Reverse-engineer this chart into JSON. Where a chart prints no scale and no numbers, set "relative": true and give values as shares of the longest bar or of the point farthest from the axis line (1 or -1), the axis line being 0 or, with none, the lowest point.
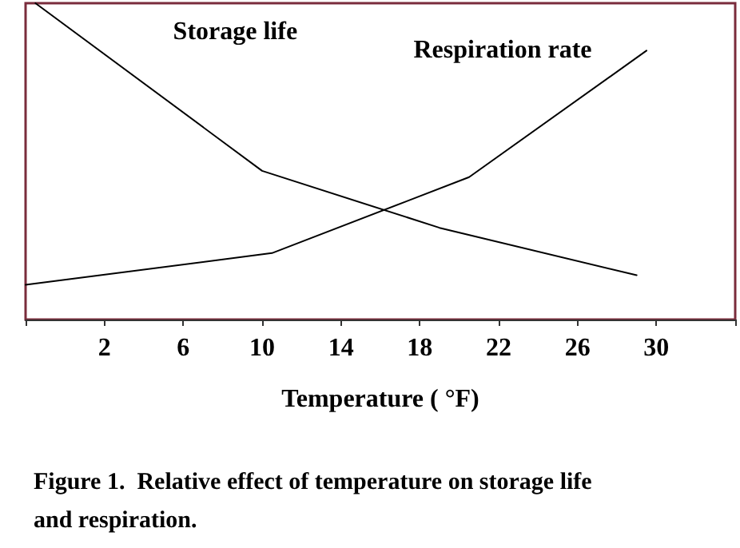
{
  "chart_data": {
    "type": "line",
    "title": "Figure 1.  Relative effect of temperature on storage life and respiration.",
    "xlabel": "Temperature ( °F)",
    "relative": true,
    "xlim": [
      -2,
      34
    ],
    "xticks": [
      {
        "value": -2,
        "label": null
      },
      2,
      6,
      10,
      14,
      18,
      22,
      26,
      30,
      {
        "value": 34,
        "label": null
      }
    ],
    "series": [
      {
        "name": "Storage life",
        "color": "#000000",
        "x": [
          -1.5,
          10,
          19,
          29
        ],
        "values": [
          1,
          0.47,
          0.29,
          0.14
        ]
      },
      {
        "name": "Respiration rate",
        "color": "#000000",
        "x": [
          -2,
          10.5,
          20.5,
          29.5
        ],
        "values": [
          0.11,
          0.21,
          0.45,
          0.85
        ]
      }
    ],
    "marker": "none",
    "line_style": "solid",
    "grid": false,
    "legend": false,
    "tick_labels": "x"
  }
}
